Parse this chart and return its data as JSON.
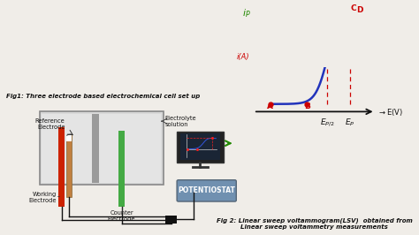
{
  "bg_color": "#f0ede8",
  "fig1_caption": "Fig1: Three electrode based electrochemical cell set up",
  "fig2_caption_line1": "Fig 2: Linear sweep voltammogram(LSV)  obtained from",
  "fig2_caption_line2": "Linear sweep voltammetry measurements",
  "potentiostat_label": "POTENTIOSTAT",
  "potentiostat_color": "#7090b0",
  "working_electrode_color": "#cc2200",
  "reference_electrode_color": "#b87040",
  "counter_electrode_color": "#44aa44",
  "separator_color": "#999999",
  "lsv_curve_color": "#2233bb",
  "dashed_color": "#cc0000",
  "point_color": "#cc0000",
  "axis_color": "#111111",
  "label_color_red": "#cc0000",
  "label_color_green": "#228800",
  "label_color_dark": "#111111",
  "arrow_color": "#228800",
  "cell_fill": "#dcdcdc",
  "cell_border": "#aaaaaa",
  "wire_color": "#111111",
  "monitor_screen": "#1a2535",
  "monitor_border": "#222222"
}
